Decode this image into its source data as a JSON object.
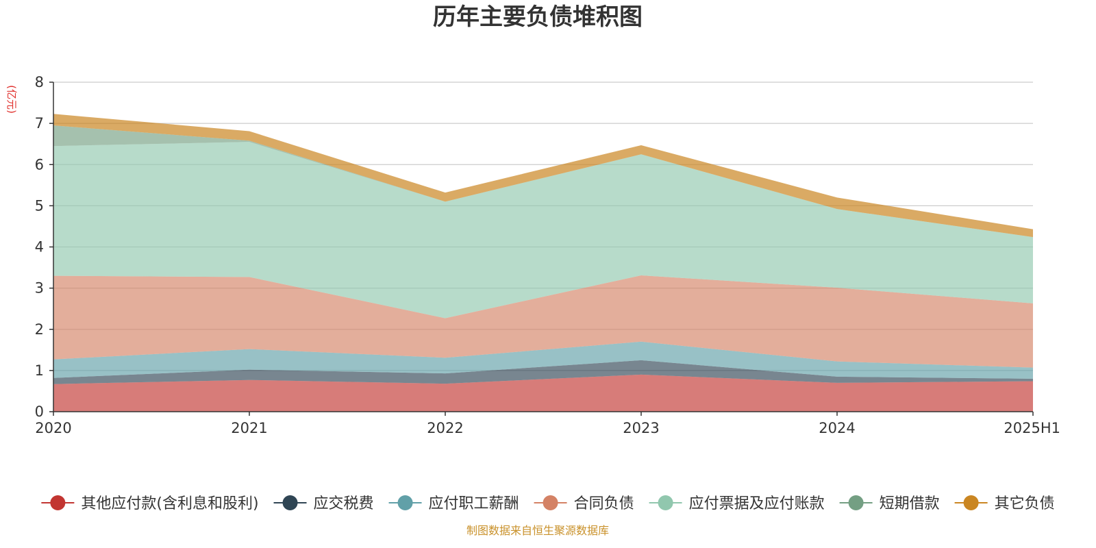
{
  "chart_data": {
    "type": "area",
    "stacked": true,
    "title": "历年主要负债堆积图",
    "unit_label": "(亿元)",
    "source_note": "制图数据来自恒生聚源数据库",
    "x": [
      "2020",
      "2021",
      "2022",
      "2023",
      "2024",
      "2025H1"
    ],
    "ylim": [
      0,
      8
    ],
    "yticks": [
      0,
      1,
      2,
      3,
      4,
      5,
      6,
      7,
      8
    ],
    "grid": true,
    "legend_position": "bottom",
    "series": [
      {
        "name": "其他应付款(含利息和股利)",
        "color": "#c23531",
        "values": [
          0.67,
          0.77,
          0.68,
          0.9,
          0.7,
          0.74
        ]
      },
      {
        "name": "应交税费",
        "color": "#2f4554",
        "values": [
          0.15,
          0.25,
          0.25,
          0.35,
          0.15,
          0.06
        ]
      },
      {
        "name": "应付职工薪酬",
        "color": "#61a0a8",
        "values": [
          0.45,
          0.5,
          0.38,
          0.45,
          0.37,
          0.27
        ]
      },
      {
        "name": "合同负债",
        "color": "#d48265",
        "values": [
          2.03,
          1.75,
          0.96,
          1.61,
          1.79,
          1.56
        ]
      },
      {
        "name": "应付票据及应付账款",
        "color": "#91c7ae",
        "values": [
          3.15,
          3.28,
          2.83,
          2.94,
          1.91,
          1.61
        ]
      },
      {
        "name": "短期借款",
        "color": "#749f83",
        "values": [
          0.5,
          0.03,
          0.0,
          0.0,
          0.0,
          0.0
        ]
      },
      {
        "name": "其它负债",
        "color": "#ca8622",
        "values": [
          0.28,
          0.23,
          0.22,
          0.22,
          0.28,
          0.19
        ]
      }
    ]
  }
}
